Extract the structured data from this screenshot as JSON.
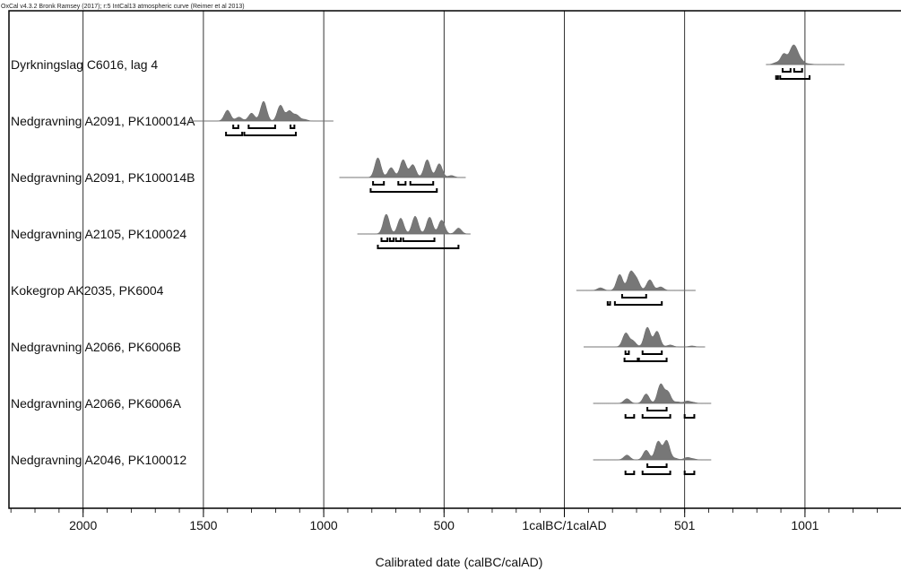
{
  "header": "OxCal v4.3.2 Bronk Ramsey (2017); r:5 IntCal13 atmospheric curve (Reimer et al 2013)",
  "chart_data": {
    "type": "multiplot",
    "xlabel": "Calibrated date (calBC/calAD)",
    "x_axis": {
      "range": [
        -2300,
        1400
      ],
      "major_ticks": [
        {
          "value": -2000,
          "label": "2000"
        },
        {
          "value": -1500,
          "label": "1500"
        },
        {
          "value": -1000,
          "label": "1000"
        },
        {
          "value": -500,
          "label": "500"
        },
        {
          "value": 0,
          "label": "1calBC/1calAD"
        },
        {
          "value": 500,
          "label": "501"
        },
        {
          "value": 1000,
          "label": "1001"
        }
      ],
      "minor_tick_step": 100,
      "grid": true
    },
    "samples": [
      {
        "label": "Dyrkningslag C6016, lag 4",
        "line": [
          838,
          1164
        ],
        "peaks": [
          [
            880,
            0.15
          ],
          [
            912,
            0.85
          ],
          [
            945,
            1.0
          ],
          [
            962,
            0.95
          ],
          [
            985,
            0.3
          ],
          [
            1020,
            0.05
          ]
        ],
        "ranges_68": [
          [
            907,
            940
          ],
          [
            955,
            988
          ]
        ],
        "ranges_95": [
          [
            880,
            888
          ],
          [
            897,
            1019
          ]
        ]
      },
      {
        "label": "Nedgravning A2091, PK100014A",
        "line": [
          -1565,
          -960
        ],
        "peaks": [
          [
            -1400,
            0.55
          ],
          [
            -1352,
            0.2
          ],
          [
            -1300,
            0.4
          ],
          [
            -1250,
            1.0
          ],
          [
            -1180,
            0.8
          ],
          [
            -1143,
            0.5
          ],
          [
            -1113,
            0.3
          ],
          [
            -1080,
            0.08
          ]
        ],
        "ranges_68": [
          [
            -1376,
            -1355
          ],
          [
            -1312,
            -1202
          ],
          [
            -1138,
            -1122
          ]
        ],
        "ranges_95": [
          [
            -1406,
            -1339
          ],
          [
            -1330,
            -1116
          ]
        ]
      },
      {
        "label": "Nedgravning A2091, PK100014B",
        "line": [
          -935,
          -410
        ],
        "peaks": [
          [
            -775,
            1.0
          ],
          [
            -720,
            0.5
          ],
          [
            -670,
            0.9
          ],
          [
            -630,
            0.65
          ],
          [
            -570,
            0.9
          ],
          [
            -520,
            0.7
          ],
          [
            -470,
            0.1
          ]
        ],
        "ranges_68": [
          [
            -795,
            -750
          ],
          [
            -690,
            -660
          ],
          [
            -640,
            -545
          ]
        ],
        "ranges_95": [
          [
            -805,
            -530
          ]
        ]
      },
      {
        "label": "Nedgravning A2105, PK100024",
        "line": [
          -860,
          -390
        ],
        "peaks": [
          [
            -740,
            1.0
          ],
          [
            -680,
            0.8
          ],
          [
            -620,
            0.9
          ],
          [
            -560,
            0.85
          ],
          [
            -510,
            0.7
          ],
          [
            -440,
            0.3
          ]
        ],
        "ranges_68": [
          [
            -760,
            -735
          ],
          [
            -725,
            -710
          ],
          [
            -700,
            -680
          ],
          [
            -670,
            -540
          ]
        ],
        "ranges_95": [
          [
            -775,
            -440
          ]
        ]
      },
      {
        "label": "Kokegrop AK2035, PK6004",
        "line": [
          50,
          545
        ],
        "peaks": [
          [
            150,
            0.15
          ],
          [
            230,
            0.9
          ],
          [
            275,
            1.0
          ],
          [
            300,
            0.6
          ],
          [
            355,
            0.6
          ],
          [
            400,
            0.2
          ]
        ],
        "ranges_68": [
          [
            240,
            340
          ]
        ],
        "ranges_95": [
          [
            180,
            190
          ],
          [
            210,
            405
          ]
        ]
      },
      {
        "label": "Nedgravning A2066, PK6006B",
        "line": [
          80,
          585
        ],
        "peaks": [
          [
            255,
            0.7
          ],
          [
            285,
            0.3
          ],
          [
            345,
            1.0
          ],
          [
            385,
            0.8
          ],
          [
            440,
            0.1
          ],
          [
            530,
            0.05
          ]
        ],
        "ranges_68": [
          [
            254,
            268
          ],
          [
            325,
            405
          ]
        ],
        "ranges_95": [
          [
            250,
            305
          ],
          [
            310,
            425
          ]
        ]
      },
      {
        "label": "Nedgravning A2066, PK6006A",
        "line": [
          120,
          610
        ],
        "peaks": [
          [
            260,
            0.25
          ],
          [
            340,
            0.5
          ],
          [
            400,
            1.0
          ],
          [
            430,
            0.6
          ],
          [
            470,
            0.08
          ],
          [
            510,
            0.12
          ],
          [
            535,
            0.05
          ]
        ],
        "ranges_68": [
          [
            345,
            425
          ]
        ],
        "ranges_95": [
          [
            254,
            290
          ],
          [
            325,
            440
          ],
          [
            500,
            540
          ]
        ]
      },
      {
        "label": "Nedgravning A2046, PK100012",
        "line": [
          120,
          610
        ],
        "peaks": [
          [
            260,
            0.25
          ],
          [
            340,
            0.5
          ],
          [
            390,
            0.95
          ],
          [
            425,
            1.0
          ],
          [
            460,
            0.08
          ],
          [
            510,
            0.12
          ],
          [
            535,
            0.05
          ]
        ],
        "ranges_68": [
          [
            345,
            425
          ]
        ],
        "ranges_95": [
          [
            254,
            290
          ],
          [
            325,
            440
          ],
          [
            500,
            540
          ]
        ]
      }
    ]
  }
}
